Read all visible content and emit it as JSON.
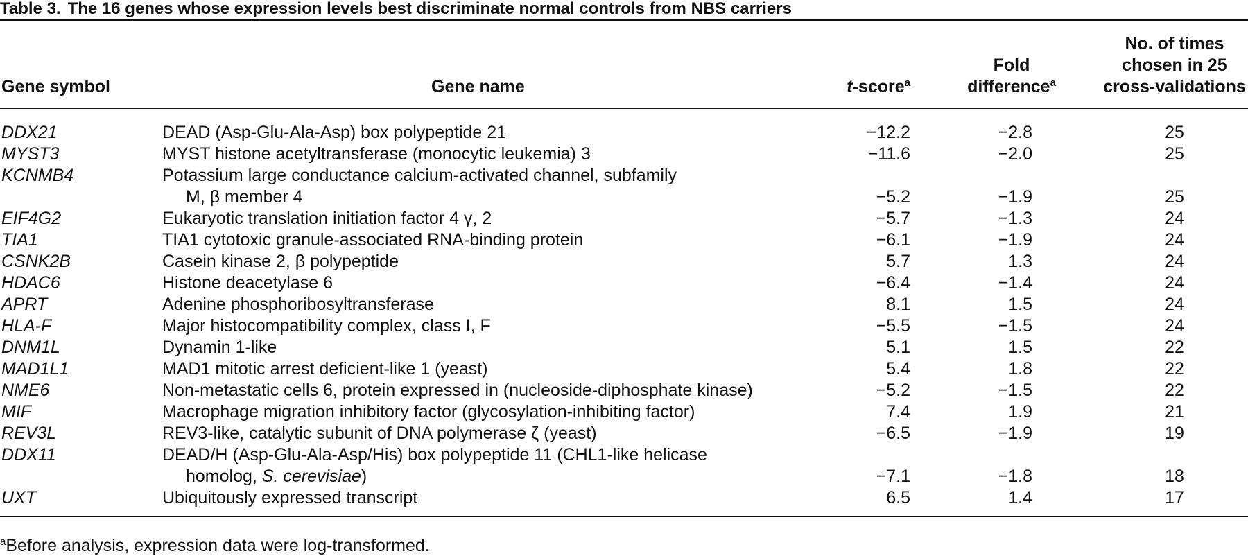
{
  "table": {
    "label": "Table 3.",
    "caption": "The 16 genes whose expression levels best discriminate normal controls from NBS carriers",
    "headers": {
      "symbol": "Gene symbol",
      "name": "Gene name",
      "tscore_italic": "t",
      "tscore_rest": "-score",
      "tscore_mark": "a",
      "fold_line1": "Fold",
      "fold_line2": "difference",
      "fold_mark": "a",
      "times_line1": "No. of times",
      "times_line2": "chosen in 25",
      "times_line3": "cross-validations"
    },
    "rows": [
      {
        "symbol": "DDX21",
        "name": "DEAD (Asp-Glu-Ala-Asp) box polypeptide 21",
        "tscore": "−12.2",
        "fold": "−2.8",
        "times": "25"
      },
      {
        "symbol": "MYST3",
        "name": "MYST histone acetyltransferase (monocytic leukemia) 3",
        "tscore": "−11.6",
        "fold": "−2.0",
        "times": "25"
      },
      {
        "symbol": "KCNMB4",
        "name": "Potassium large conductance calcium-activated channel, subfamily",
        "name_cont": "M, β member 4",
        "tscore": "−5.2",
        "fold": "−1.9",
        "times": "25"
      },
      {
        "symbol": "EIF4G2",
        "name": "Eukaryotic translation initiation factor 4 γ, 2",
        "tscore": "−5.7",
        "fold": "−1.3",
        "times": "24"
      },
      {
        "symbol": "TIA1",
        "name": "TIA1 cytotoxic granule-associated RNA-binding protein",
        "tscore": "−6.1",
        "fold": "−1.9",
        "times": "24"
      },
      {
        "symbol": "CSNK2B",
        "name": "Casein kinase 2, β polypeptide",
        "tscore": "5.7",
        "fold": "1.3",
        "times": "24"
      },
      {
        "symbol": "HDAC6",
        "name": "Histone deacetylase 6",
        "tscore": "−6.4",
        "fold": "−1.4",
        "times": "24"
      },
      {
        "symbol": "APRT",
        "name": "Adenine phosphoribosyltransferase",
        "tscore": "8.1",
        "fold": "1.5",
        "times": "24"
      },
      {
        "symbol": "HLA-F",
        "name": "Major histocompatibility complex, class I, F",
        "tscore": "−5.5",
        "fold": "−1.5",
        "times": "24"
      },
      {
        "symbol": "DNM1L",
        "name": "Dynamin 1-like",
        "tscore": "5.1",
        "fold": "1.5",
        "times": "22"
      },
      {
        "symbol": "MAD1L1",
        "name": "MAD1 mitotic arrest deficient-like 1 (yeast)",
        "tscore": "5.4",
        "fold": "1.8",
        "times": "22"
      },
      {
        "symbol": "NME6",
        "name": "Non-metastatic cells 6, protein expressed in (nucleoside-diphosphate kinase)",
        "tscore": "−5.2",
        "fold": "−1.5",
        "times": "22"
      },
      {
        "symbol": "MIF",
        "name": "Macrophage migration inhibitory factor (glycosylation-inhibiting factor)",
        "tscore": "7.4",
        "fold": "1.9",
        "times": "21"
      },
      {
        "symbol": "REV3L",
        "name": "REV3-like, catalytic subunit of DNA polymerase ζ (yeast)",
        "tscore": "−6.5",
        "fold": "−1.9",
        "times": "19"
      },
      {
        "symbol": "DDX11",
        "name": "DEAD/H (Asp-Glu-Ala-Asp/His) box polypeptide 11 (CHL1-like helicase",
        "name_cont": "homolog, ",
        "name_cont_italic": "S. cerevisiae",
        "name_cont_end": ")",
        "tscore": "−7.1",
        "fold": "−1.8",
        "times": "18"
      },
      {
        "symbol": "UXT",
        "name": "Ubiquitously expressed transcript",
        "tscore": "6.5",
        "fold": "1.4",
        "times": "17"
      }
    ],
    "footnote_mark": "a",
    "footnote": "Before analysis, expression data were log-transformed."
  }
}
